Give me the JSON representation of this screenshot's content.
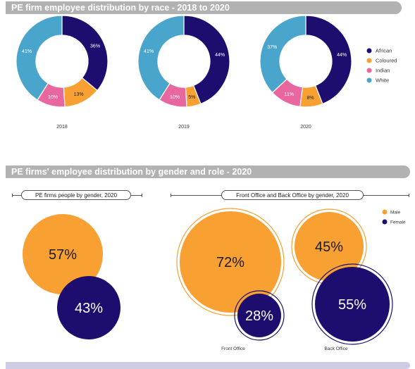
{
  "section1": {
    "title": "PE firm employee distribution by race - 2018 to 2020"
  },
  "section2": {
    "title": "PE firms' employee distribution by gender and role - 2020",
    "left_subtitle": "PE firms people by gender, 2020",
    "right_subtitle": "Front Office and Back Office by gender, 2020"
  },
  "colors": {
    "African": "#1d0d6e",
    "Coloured": "#f8a032",
    "Indian": "#e9679f",
    "White": "#4aa5cc",
    "Male": "#f8a032",
    "Female": "#1d0d6e"
  },
  "chart_data": [
    {
      "type": "pie",
      "title": "PE firm employee distribution by race - 2018 to 2020",
      "categories": [
        "African",
        "Coloured",
        "Indian",
        "White"
      ],
      "series": [
        {
          "name": "2018",
          "values": [
            36,
            13,
            10,
            41
          ],
          "labels": [
            "36%",
            "13%",
            "10%",
            "41%"
          ]
        },
        {
          "name": "2019",
          "values": [
            44,
            5,
            10,
            41
          ],
          "labels": [
            "44%",
            "5%",
            "10%",
            "41%"
          ]
        },
        {
          "name": "2020",
          "values": [
            44,
            8,
            11,
            37
          ],
          "labels": [
            "44%",
            "8%",
            "11%",
            "37%"
          ]
        }
      ],
      "legend": [
        "African",
        "Coloured",
        "Indian",
        "White"
      ],
      "legend_position": "right"
    },
    {
      "type": "bubble",
      "title": "PE firms people by gender, 2020",
      "categories": [
        "Male",
        "Female"
      ],
      "values": [
        57,
        43
      ],
      "labels": [
        "57%",
        "43%"
      ]
    },
    {
      "type": "bubble",
      "title": "Front Office and Back Office by gender, 2020",
      "categories": [
        "Front Office",
        "Back Office"
      ],
      "series": [
        {
          "name": "Male",
          "values": [
            72,
            45
          ],
          "labels": [
            "72%",
            "45%"
          ]
        },
        {
          "name": "Female",
          "values": [
            28,
            55
          ],
          "labels": [
            "28%",
            "55%"
          ]
        }
      ],
      "legend": [
        "Male",
        "Female"
      ],
      "legend_position": "top-right"
    }
  ]
}
